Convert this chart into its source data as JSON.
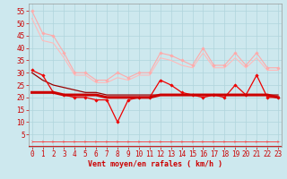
{
  "xlabel": "Vent moyen/en rafales ( km/h )",
  "background_color": "#cde8ee",
  "grid_color": "#b0d4dc",
  "x": [
    0,
    1,
    2,
    3,
    4,
    5,
    6,
    7,
    8,
    9,
    10,
    11,
    12,
    13,
    14,
    15,
    16,
    17,
    18,
    19,
    20,
    21,
    22,
    23
  ],
  "lines": [
    {
      "y": [
        55,
        46,
        45,
        38,
        30,
        30,
        27,
        27,
        30,
        28,
        30,
        30,
        38,
        37,
        35,
        33,
        40,
        33,
        33,
        38,
        33,
        38,
        32,
        32
      ],
      "color": "#ffaaaa",
      "lw": 0.8,
      "marker": "D",
      "ms": 1.8,
      "zorder": 3
    },
    {
      "y": [
        52,
        43,
        42,
        36,
        29,
        29,
        26,
        26,
        28,
        27,
        29,
        29,
        36,
        35,
        33,
        32,
        38,
        32,
        32,
        36,
        32,
        36,
        31,
        31
      ],
      "color": "#ffbbbb",
      "lw": 0.8,
      "marker": null,
      "ms": 0,
      "zorder": 2
    },
    {
      "y": [
        31,
        29,
        22,
        21,
        20,
        20,
        19,
        19,
        10,
        19,
        20,
        20,
        27,
        25,
        22,
        21,
        20,
        21,
        20,
        25,
        21,
        29,
        20,
        20
      ],
      "color": "#ee0000",
      "lw": 0.9,
      "marker": "D",
      "ms": 1.8,
      "zorder": 4
    },
    {
      "y": [
        22,
        22,
        22,
        21,
        21,
        21,
        21,
        20,
        20,
        20,
        20,
        20,
        21,
        21,
        21,
        21,
        21,
        21,
        21,
        21,
        21,
        21,
        21,
        20
      ],
      "color": "#cc0000",
      "lw": 2.2,
      "marker": null,
      "ms": 0,
      "zorder": 5
    },
    {
      "y": [
        30,
        27,
        25,
        24,
        23,
        22,
        22,
        21,
        21,
        21,
        21,
        21,
        21,
        21,
        21,
        21,
        21,
        21,
        21,
        21,
        21,
        21,
        21,
        21
      ],
      "color": "#990000",
      "lw": 0.9,
      "marker": null,
      "ms": 0,
      "zorder": 2
    },
    {
      "y": [
        2,
        2,
        2,
        2,
        2,
        2,
        2,
        2,
        2,
        2,
        2,
        2,
        2,
        2,
        2,
        2,
        2,
        2,
        2,
        2,
        2,
        2,
        2,
        2
      ],
      "color": "#ff3333",
      "lw": 0.6,
      "marker": "4",
      "ms": 3.0,
      "zorder": 3
    }
  ],
  "yticks": [
    5,
    10,
    15,
    20,
    25,
    30,
    35,
    40,
    45,
    50,
    55
  ],
  "ylim": [
    0,
    58
  ],
  "xlim": [
    -0.3,
    23.3
  ],
  "tick_fontsize": 5.5,
  "xlabel_fontsize": 6.0
}
